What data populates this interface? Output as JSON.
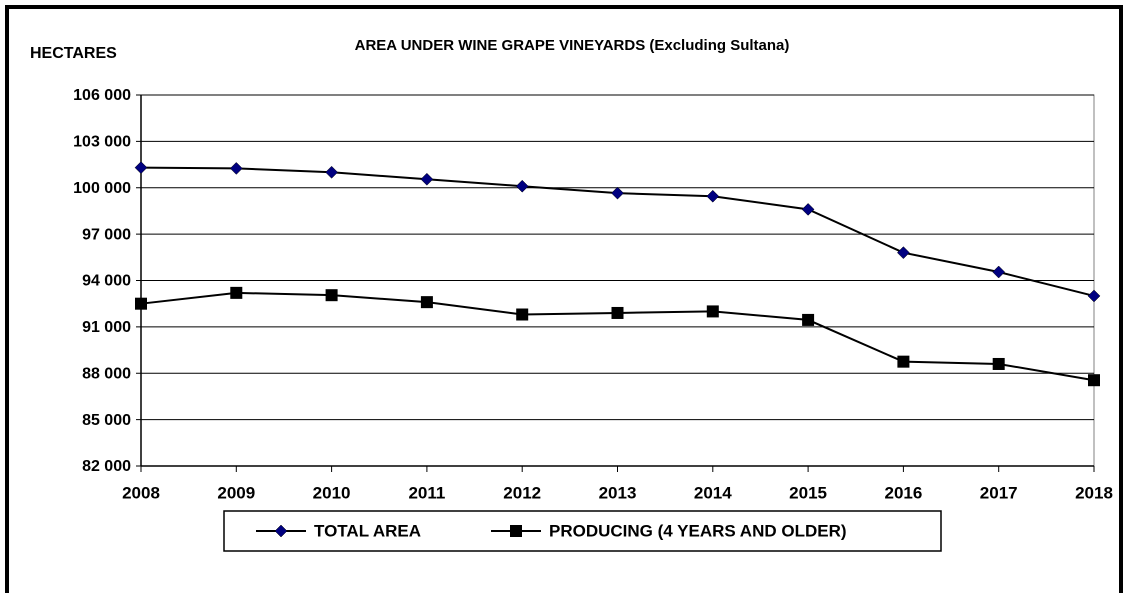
{
  "chart_data": {
    "type": "line",
    "title": "AREA UNDER WINE GRAPE VINEYARDS (Excluding Sultana)",
    "y_label": "HECTARES",
    "categories": [
      "2008",
      "2009",
      "2010",
      "2011",
      "2012",
      "2013",
      "2014",
      "2015",
      "2016",
      "2017",
      "2018"
    ],
    "series": [
      {
        "name": "TOTAL AREA",
        "color": "#000080",
        "marker": "diamond",
        "values": [
          101300,
          101250,
          101000,
          100550,
          100100,
          99650,
          99450,
          98600,
          95800,
          94550,
          93000
        ]
      },
      {
        "name": "PRODUCING (4 YEARS AND OLDER)",
        "color": "#000000",
        "marker": "square",
        "values": [
          92500,
          93200,
          93050,
          92600,
          91800,
          91900,
          92000,
          91450,
          88750,
          88600,
          87550
        ]
      }
    ],
    "ylim": [
      82000,
      106000
    ],
    "yticks": [
      {
        "value": 82000,
        "label": "82 000"
      },
      {
        "value": 85000,
        "label": "85 000"
      },
      {
        "value": 88000,
        "label": "88 000"
      },
      {
        "value": 91000,
        "label": "91 000"
      },
      {
        "value": 94000,
        "label": "94 000"
      },
      {
        "value": 97000,
        "label": "97 000"
      },
      {
        "value": 100000,
        "label": "100 000"
      },
      {
        "value": 103000,
        "label": "103 000"
      },
      {
        "value": 106000,
        "label": "106 000"
      }
    ],
    "grid": true,
    "legend": "bottom"
  }
}
